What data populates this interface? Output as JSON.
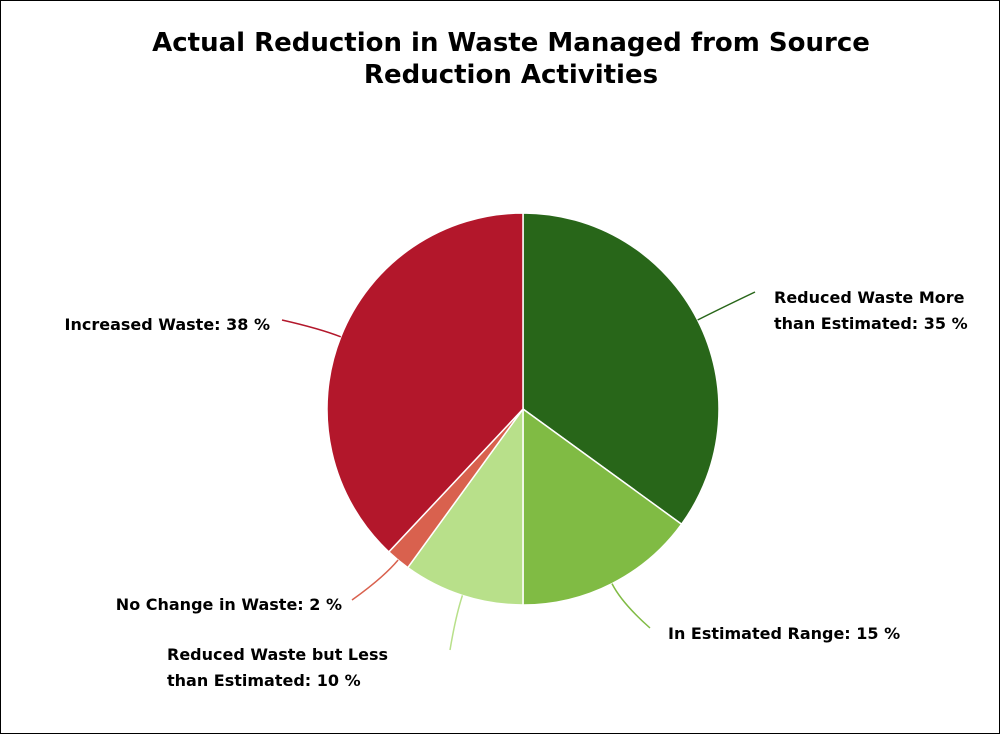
{
  "chart_data": {
    "type": "pie",
    "title": "Actual Reduction in Waste Managed from Source Reduction Activities",
    "categories": [
      "Reduced Waste More than Estimated: 35 %",
      "In Estimated Range: 15 %",
      "Reduced Waste but Less than Estimated: 10 %",
      "No Change in Waste: 2 %",
      "Increased Waste: 38 %"
    ],
    "values": [
      35,
      15,
      10,
      2,
      38
    ],
    "colors": [
      "#286619",
      "#80bb44",
      "#b8e08a",
      "#d9614e",
      "#b3172b"
    ]
  }
}
